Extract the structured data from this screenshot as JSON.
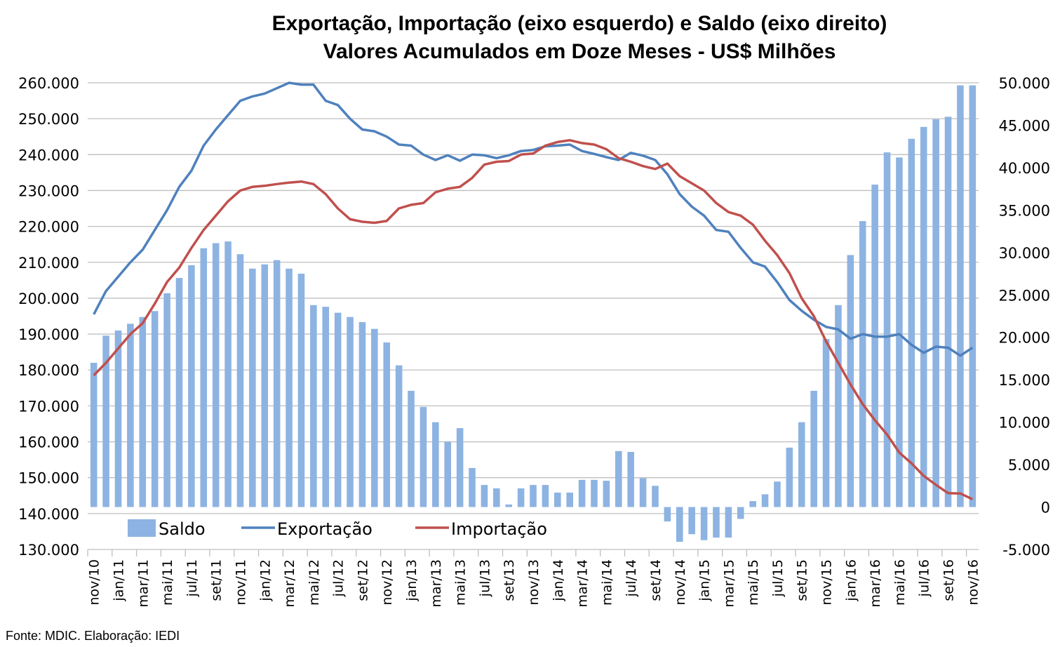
{
  "chart_data": {
    "type": "bar+line",
    "title": "Exportação, Importação (eixo esquerdo) e Saldo (eixo direito)",
    "subtitle": "Valores Acumulados em Doze Meses - US$ Milhões",
    "source": "Fonte: MDIC. Elaboração: IEDI",
    "left_axis": {
      "ylim": [
        130000,
        260000
      ],
      "step": 10000,
      "tick_labels": [
        "260.000",
        "250.000",
        "240.000",
        "230.000",
        "220.000",
        "210.000",
        "200.000",
        "190.000",
        "180.000",
        "170.000",
        "160.000",
        "150.000",
        "140.000",
        "130.000"
      ]
    },
    "right_axis": {
      "ylim": [
        -5000,
        50000
      ],
      "step": 5000,
      "tick_labels": [
        "50.000",
        "45.000",
        "40.000",
        "35.000",
        "30.000",
        "25.000",
        "20.000",
        "15.000",
        "10.000",
        "5.000",
        "0",
        "-5.000"
      ]
    },
    "x_tick_labels": [
      "nov/10",
      "jan/11",
      "mar/11",
      "mai/11",
      "jul/11",
      "set/11",
      "nov/11",
      "jan/12",
      "mar/12",
      "mai/12",
      "jul/12",
      "set/12",
      "nov/12",
      "jan/13",
      "mar/13",
      "mai/13",
      "jul/13",
      "set/13",
      "nov/13",
      "jan/14",
      "mar/14",
      "mai/14",
      "jul/14",
      "set/14",
      "nov/14",
      "jan/15",
      "mar/15",
      "mai/15",
      "jul/15",
      "set/15",
      "nov/15",
      "jan/16",
      "mar/16",
      "mai/16",
      "jul/16",
      "set/16",
      "nov/16"
    ],
    "months_count": 73,
    "grid": true,
    "legend_position": "bottom-left inside plot",
    "legend": [
      "Saldo",
      "Exportação",
      "Importação"
    ],
    "colors": {
      "Saldo": "#8DB3E2",
      "Exportação": "#4F81BD",
      "Importação": "#C0504D",
      "grid": "#BFBFBF"
    },
    "series": [
      {
        "name": "Saldo",
        "type": "bar",
        "axis": "right",
        "values": [
          17000,
          20200,
          20800,
          21600,
          22400,
          23100,
          25200,
          27000,
          28500,
          30500,
          31100,
          31300,
          29800,
          28100,
          28600,
          29100,
          28100,
          27500,
          23800,
          23600,
          22900,
          22400,
          21800,
          21000,
          19400,
          16700,
          13700,
          11800,
          10000,
          7700,
          9300,
          4600,
          2600,
          2200,
          300,
          2200,
          2600,
          2600,
          1700,
          1700,
          3200,
          3200,
          3100,
          6600,
          6500,
          3400,
          2500,
          -1700,
          -4100,
          -3200,
          -3900,
          -3600,
          -3600,
          -1400,
          700,
          1500,
          3000,
          7000,
          10000,
          13700,
          19800,
          23800,
          29700,
          33700,
          38000,
          41800,
          41200,
          43400,
          44800,
          45700,
          46000,
          49700,
          49700
        ]
      },
      {
        "name": "Exportação",
        "type": "line",
        "axis": "left",
        "values": [
          195500,
          202000,
          206000,
          210000,
          213500,
          219000,
          224500,
          231000,
          235500,
          242500,
          247000,
          251000,
          255000,
          256200,
          257000,
          258500,
          260000,
          259500,
          259500,
          255000,
          253800,
          250000,
          247000,
          246500,
          245000,
          242800,
          242500,
          240000,
          238500,
          239800,
          238300,
          240000,
          239800,
          239000,
          239800,
          241000,
          241300,
          242300,
          242500,
          242800,
          241000,
          240200,
          239300,
          238500,
          240500,
          239700,
          238500,
          234500,
          229000,
          225500,
          223000,
          219000,
          218500,
          214000,
          210000,
          208800,
          204500,
          199500,
          196500,
          194000,
          192000,
          191300,
          188700,
          190000,
          189300,
          189300,
          190000,
          187000,
          184800,
          186500,
          186200,
          184000,
          186200
        ]
      },
      {
        "name": "Importação",
        "type": "line",
        "axis": "left",
        "values": [
          178500,
          182000,
          186000,
          190000,
          193000,
          198500,
          204500,
          208500,
          214000,
          219000,
          223000,
          227000,
          230000,
          231000,
          231300,
          231800,
          232200,
          232500,
          231800,
          229000,
          225000,
          222000,
          221300,
          221000,
          221500,
          225000,
          226000,
          226500,
          229500,
          230500,
          231000,
          233500,
          237200,
          238000,
          238200,
          240000,
          240300,
          242500,
          243500,
          244000,
          243200,
          242800,
          241500,
          239000,
          238000,
          236800,
          236000,
          237500,
          234000,
          232000,
          230000,
          226500,
          224000,
          223000,
          220500,
          216000,
          212000,
          207000,
          200000,
          195000,
          188000,
          182000,
          176000,
          170500,
          166000,
          162000,
          157000,
          154000,
          150500,
          148000,
          145700,
          145600,
          144000
        ]
      }
    ]
  }
}
